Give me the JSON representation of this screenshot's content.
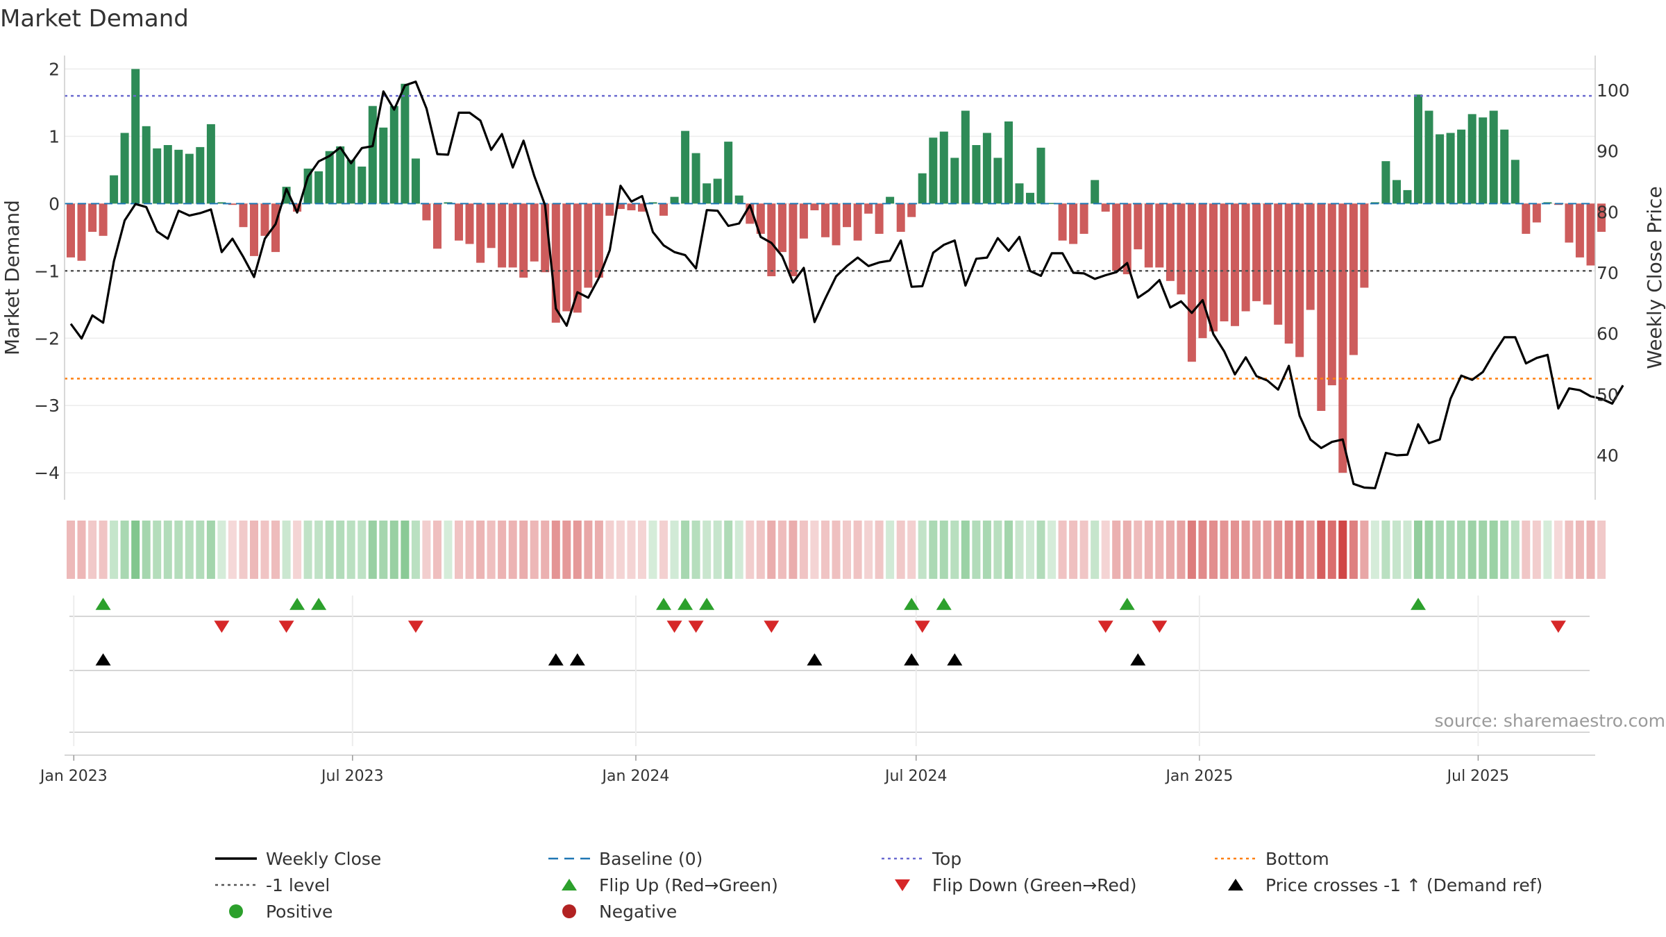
{
  "chart_data": {
    "type": "bar",
    "title": "Market Demand",
    "ylabel_left": "Market Demand",
    "ylabel_right": "Weekly Close Price",
    "source": "source: sharemaestro.com",
    "x_range": [
      "2022-12-26",
      "2025-09-15"
    ],
    "x_ticks": [
      {
        "date": "2023-01-01",
        "label": "Jan 2023"
      },
      {
        "date": "2023-07-01",
        "label": "Jul 2023"
      },
      {
        "date": "2024-01-01",
        "label": "Jan 2024"
      },
      {
        "date": "2024-07-01",
        "label": "Jul 2024"
      },
      {
        "date": "2025-01-01",
        "label": "Jan 2025"
      },
      {
        "date": "2025-07-01",
        "label": "Jul 2025"
      }
    ],
    "left_axis": {
      "ylim": [
        -4.4,
        2.2
      ],
      "ticks": [
        2,
        1,
        0,
        -1,
        -2,
        -3,
        -4
      ],
      "tick_labels": [
        "2",
        "1",
        "0",
        "−1",
        "−2",
        "−3",
        "−4"
      ]
    },
    "right_axis": {
      "ylim": [
        32.7,
        105.7
      ],
      "ticks": [
        100,
        90,
        80,
        70,
        60,
        50,
        40
      ],
      "tick_labels": [
        "100",
        "90",
        "80",
        "70",
        "60",
        "50",
        "40"
      ]
    },
    "reference_lines": {
      "top": 1.6,
      "bottom": -2.6,
      "level": -1,
      "baseline": 0
    },
    "start_date": "2022-12-26",
    "demand": [
      -0.8,
      -0.85,
      -0.42,
      -0.48,
      0.42,
      1.05,
      2.0,
      1.15,
      0.82,
      0.87,
      0.8,
      0.74,
      0.84,
      1.18,
      0.02,
      -0.02,
      -0.35,
      -0.78,
      -0.48,
      -0.72,
      0.25,
      -0.12,
      0.52,
      0.48,
      0.78,
      0.85,
      0.65,
      0.55,
      1.45,
      1.13,
      1.45,
      1.78,
      0.67,
      -0.25,
      -0.67,
      0.02,
      -0.55,
      -0.6,
      -0.88,
      -0.66,
      -0.95,
      -0.95,
      -1.1,
      -0.86,
      -1.02,
      -1.77,
      -1.6,
      -1.62,
      -1.25,
      -1.1,
      -0.18,
      -0.08,
      -0.1,
      -0.12,
      0.02,
      -0.18,
      0.1,
      1.08,
      0.75,
      0.3,
      0.37,
      0.92,
      0.12,
      -0.3,
      -0.45,
      -1.08,
      -0.72,
      -1.08,
      -0.52,
      -0.1,
      -0.5,
      -0.62,
      -0.35,
      -0.55,
      -0.15,
      -0.45,
      0.1,
      -0.42,
      -0.2,
      0.45,
      0.98,
      1.07,
      0.68,
      1.38,
      0.87,
      1.05,
      0.68,
      1.22,
      0.3,
      0.16,
      0.83,
      0.01,
      -0.55,
      -0.6,
      -0.45,
      0.35,
      -0.12,
      -1.0,
      -1.05,
      -0.68,
      -0.95,
      -0.95,
      -1.15,
      -1.35,
      -2.35,
      -2.0,
      -1.9,
      -1.75,
      -1.82,
      -1.6,
      -1.45,
      -1.5,
      -1.8,
      -2.08,
      -2.28,
      -1.58,
      -3.08,
      -2.7,
      -4.0,
      -2.25,
      -1.25,
      0.02,
      0.63,
      0.35,
      0.2,
      1.62,
      1.38,
      1.03,
      1.05,
      1.1,
      1.33,
      1.28,
      1.38,
      1.1,
      0.65,
      -0.45,
      -0.28,
      0.02,
      -0.02,
      -0.58,
      -0.8,
      -0.92,
      -0.42
    ],
    "close": [
      61.6,
      59.2,
      63.0,
      61.8,
      71.9,
      78.6,
      81.3,
      80.8,
      76.8,
      75.6,
      80.2,
      79.4,
      79.8,
      80.4,
      73.4,
      75.6,
      72.6,
      69.3,
      75.6,
      78.0,
      83.8,
      79.9,
      85.8,
      88.3,
      89.2,
      90.6,
      88.0,
      90.5,
      90.8,
      99.8,
      96.8,
      100.8,
      101.4,
      97.0,
      89.5,
      89.4,
      96.3,
      96.3,
      95.0,
      90.2,
      92.8,
      87.3,
      91.7,
      85.9,
      81.1,
      64.1,
      61.3,
      66.8,
      65.9,
      69.2,
      73.7,
      84.3,
      81.7,
      82.6,
      76.7,
      74.5,
      73.4,
      72.9,
      70.7,
      80.3,
      80.2,
      77.7,
      78.1,
      81.1,
      75.9,
      74.9,
      72.7,
      68.4,
      70.8,
      61.9,
      65.8,
      69.4,
      71.1,
      72.5,
      71.1,
      71.7,
      72.0,
      75.3,
      67.7,
      67.8,
      73.3,
      74.6,
      75.3,
      67.9,
      72.3,
      72.5,
      75.7,
      73.6,
      75.9,
      70.3,
      69.5,
      73.2,
      73.2,
      70.0,
      69.9,
      69.0,
      69.6,
      70.1,
      71.6,
      65.9,
      67.1,
      68.8,
      64.3,
      65.3,
      63.4,
      65.5,
      59.9,
      57.1,
      53.3,
      56.1,
      53.0,
      52.3,
      50.8,
      54.7,
      46.5,
      42.6,
      41.2,
      42.2,
      42.6,
      35.3,
      34.7,
      34.6,
      40.4,
      40.0,
      40.1,
      45.1,
      42.0,
      42.6,
      49.3,
      53.1,
      52.4,
      53.7,
      56.7,
      59.4,
      59.4,
      55.1,
      56.0,
      56.5,
      47.7,
      51.0,
      50.7,
      49.7,
      49.3,
      48.5,
      51.5
    ],
    "flip_up_weeks": [
      3,
      21,
      23,
      55,
      57,
      59,
      78,
      81,
      98,
      125
    ],
    "flip_down_weeks": [
      14,
      20,
      32,
      56,
      58,
      65,
      79,
      96,
      101,
      138
    ],
    "price_cross_weeks": [
      3,
      45,
      47,
      69,
      78,
      82,
      99
    ],
    "legend": [
      {
        "label": "Weekly Close",
        "icon": "line-icon",
        "color": "#000000"
      },
      {
        "label": "Baseline (0)",
        "icon": "dashed-line-icon",
        "color": "#1f77b4"
      },
      {
        "label": "Top",
        "icon": "dotted-line-icon",
        "color": "#6a6ad0"
      },
      {
        "label": "Bottom",
        "icon": "dotted-line-icon",
        "color": "#ff7f0e"
      },
      {
        "label": "-1 level",
        "icon": "dotted-line-icon",
        "color": "#555555"
      },
      {
        "label": "Flip Up (Red→Green)",
        "icon": "triangle-up-icon",
        "color": "#2ca02c"
      },
      {
        "label": "Flip Down (Green→Red)",
        "icon": "triangle-down-icon",
        "color": "#d62728"
      },
      {
        "label": "Price crosses -1 ↑ (Demand ref)",
        "icon": "triangle-up-icon",
        "color": "#000000"
      },
      {
        "label": "Positive",
        "icon": "circle-icon",
        "color": "#2ca02c"
      },
      {
        "label": "Negative",
        "icon": "circle-icon",
        "color": "#b22222"
      }
    ],
    "colors": {
      "positive_bar": "#2e8b57",
      "negative_bar": "#cd5c5c",
      "close_line": "#000000"
    }
  }
}
